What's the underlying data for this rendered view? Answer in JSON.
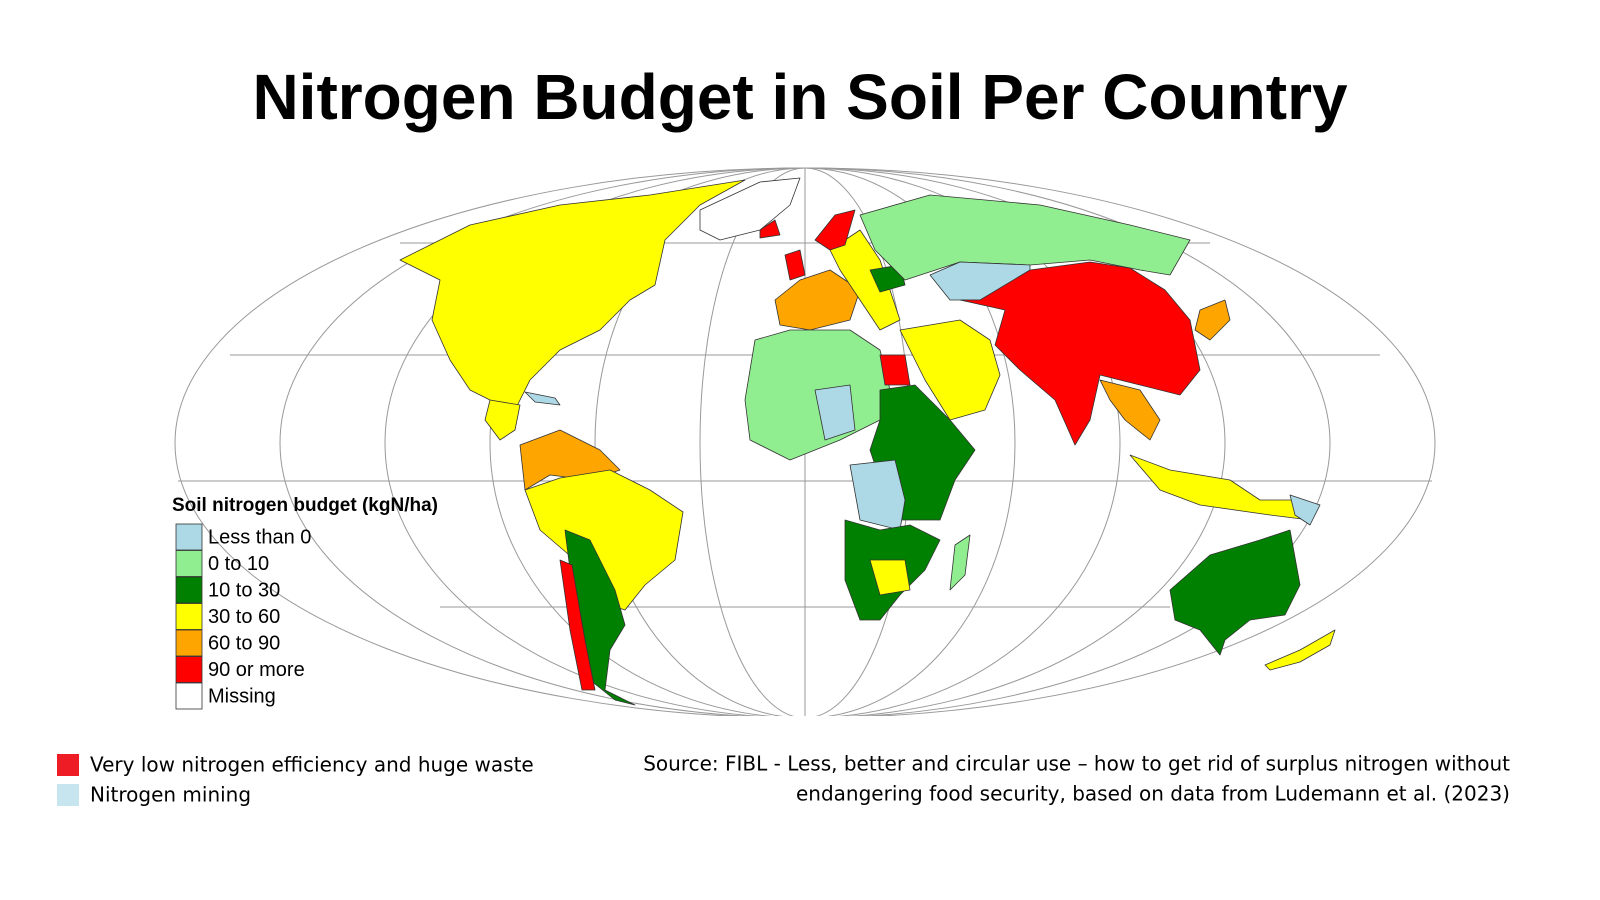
{
  "title": "Nitrogen Budget in Soil Per Country",
  "legend": {
    "title": "Soil nitrogen budget (kgN/ha)",
    "items": [
      {
        "label": "Less than 0",
        "color": "#add8e6"
      },
      {
        "label": "0 to 10",
        "color": "#90ee90"
      },
      {
        "label": "10 to 30",
        "color": "#008000"
      },
      {
        "label": "30 to 60",
        "color": "#ffff00"
      },
      {
        "label": "60 to 90",
        "color": "#ffa500"
      },
      {
        "label": "90 or more",
        "color": "#ff0000"
      },
      {
        "label": "Missing",
        "color": "#ffffff"
      }
    ]
  },
  "notes": [
    {
      "label": "Very low nitrogen efficiency and huge waste",
      "color": "#ee1c25"
    },
    {
      "label": "Nitrogen mining",
      "color": "#c6e5ee"
    }
  ],
  "source": [
    "Source: FIBL - Less, better and circular use – how to get rid of surplus nitrogen without",
    "endangering food security, based on data from Ludemann et al. (2023)"
  ]
}
